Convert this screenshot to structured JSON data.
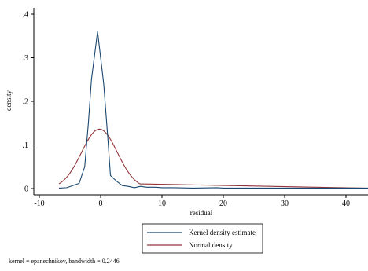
{
  "chart_data": {
    "type": "line",
    "xlabel": "residual",
    "ylabel": "density",
    "xlim": [
      -10,
      45
    ],
    "ylim": [
      0,
      0.4
    ],
    "x_ticks": [
      -10,
      0,
      10,
      20,
      30,
      40
    ],
    "x_tick_labels": [
      "-10",
      "0",
      "10",
      "20",
      "30",
      "40"
    ],
    "y_ticks": [
      0,
      0.1,
      0.2,
      0.3,
      0.4
    ],
    "y_tick_labels": [
      "0",
      ".1",
      ".2",
      ".3",
      ".4"
    ],
    "grid": false,
    "legend_position": "bottom",
    "series": [
      {
        "name": "Kernel density estimate",
        "color": "#1a476f",
        "points": [
          [
            -6.8,
            0.001
          ],
          [
            -5.5,
            0.002
          ],
          [
            -4.5,
            0.007
          ],
          [
            -3.5,
            0.012
          ],
          [
            -2.6,
            0.05
          ],
          [
            -2.0,
            0.15
          ],
          [
            -1.5,
            0.25
          ],
          [
            -0.5,
            0.36
          ],
          [
            0.5,
            0.24
          ],
          [
            1.2,
            0.11
          ],
          [
            1.6,
            0.03
          ],
          [
            2.5,
            0.018
          ],
          [
            3.5,
            0.007
          ],
          [
            4.5,
            0.005
          ],
          [
            5.5,
            0.002
          ],
          [
            6.5,
            0.005
          ],
          [
            7.5,
            0.003
          ],
          [
            9.0,
            0.003
          ],
          [
            10.0,
            0.002
          ],
          [
            12.0,
            0.002
          ],
          [
            15.0,
            0.001
          ],
          [
            19.0,
            0.002
          ],
          [
            20.0,
            0.001
          ],
          [
            30.0,
            0.001
          ],
          [
            44.5,
            0.001
          ]
        ]
      },
      {
        "name": "Normal density",
        "color": "#90353b",
        "mean": -0.2,
        "sd": 2.93
      }
    ],
    "note": "kernel = epanechnikov, bandwidth = 0.2446"
  }
}
